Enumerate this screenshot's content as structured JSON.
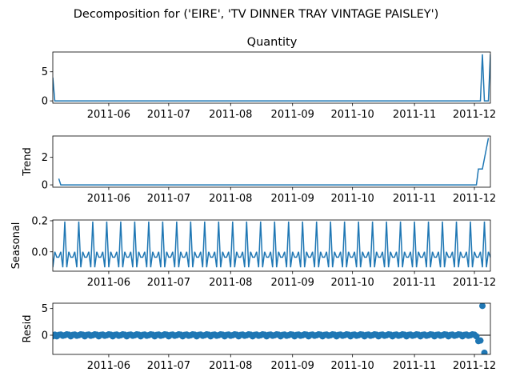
{
  "figure_title": "Decomposition for ('EIRE', 'TV DINNER TRAY VINTAGE PAISLEY')",
  "chart_data": [
    {
      "type": "line",
      "panel": "observed",
      "title": "Quantity",
      "xlabel": "",
      "ylabel": "",
      "x_range": [
        "2011-05-04",
        "2011-12-09"
      ],
      "ylim": [
        -0.4,
        8.4
      ],
      "yticks": [
        0,
        5
      ],
      "xticks": [
        "2011-06",
        "2011-07",
        "2011-08",
        "2011-09",
        "2011-10",
        "2011-11",
        "2011-12"
      ],
      "color": "#1f77b4",
      "points": [
        {
          "x": "2011-05-04",
          "y": 4
        },
        {
          "x": "2011-05-05",
          "y": 0
        },
        {
          "x": "2011-12-04",
          "y": 0
        },
        {
          "x": "2011-12-05",
          "y": 8
        },
        {
          "x": "2011-12-06",
          "y": 0
        },
        {
          "x": "2011-12-08",
          "y": 0
        },
        {
          "x": "2011-12-09",
          "y": 8
        }
      ]
    },
    {
      "type": "line",
      "panel": "trend",
      "title": "",
      "ylabel": "Trend",
      "x_range": [
        "2011-05-04",
        "2011-12-09"
      ],
      "ylim": [
        -0.17,
        3.55
      ],
      "yticks": [
        0,
        2
      ],
      "xticks": [
        "2011-06",
        "2011-07",
        "2011-08",
        "2011-09",
        "2011-10",
        "2011-11",
        "2011-12"
      ],
      "color": "#1f77b4",
      "points": [
        {
          "x": "2011-05-07",
          "y": 0.45
        },
        {
          "x": "2011-05-08",
          "y": 0.0
        },
        {
          "x": "2011-12-02",
          "y": 0.0
        },
        {
          "x": "2011-12-03",
          "y": 1.15
        },
        {
          "x": "2011-12-05",
          "y": 1.15
        },
        {
          "x": "2011-12-08",
          "y": 3.4
        }
      ]
    },
    {
      "type": "line",
      "panel": "seasonal",
      "title": "",
      "ylabel": "Seasonal",
      "x_range": [
        "2011-05-04",
        "2011-12-09"
      ],
      "ylim": [
        -0.125,
        0.205
      ],
      "yticks": [
        0.2,
        0.0
      ],
      "ytick_labels": [
        "0.2",
        "0.0"
      ],
      "xticks": [
        "2011-06",
        "2011-07",
        "2011-08",
        "2011-09",
        "2011-10",
        "2011-11",
        "2011-12"
      ],
      "color": "#1f77b4",
      "period_days": 7,
      "weekly_pattern": [
        0.195,
        -0.1,
        0.0,
        -0.035,
        -0.035,
        0.0,
        -0.1
      ],
      "pattern_start": "2011-05-03"
    },
    {
      "type": "scatter",
      "panel": "resid",
      "title": "",
      "ylabel": "Resid",
      "x_range": [
        "2011-05-04",
        "2011-12-09"
      ],
      "ylim": [
        -3.6,
        6.0
      ],
      "yticks": [
        5,
        0
      ],
      "xticks": [
        "2011-06",
        "2011-07",
        "2011-08",
        "2011-09",
        "2011-10",
        "2011-11",
        "2011-12"
      ],
      "color": "#1f77b4",
      "baseline": 0,
      "bulk_range": [
        "2011-05-04",
        "2011-12-02"
      ],
      "bulk_pattern": [
        0.1,
        -0.2,
        0.05,
        0.12,
        -0.1,
        0.0,
        0.15
      ],
      "points": [
        {
          "x": "2011-05-04",
          "y": -0.2
        },
        {
          "x": "2011-12-03",
          "y": -1.1
        },
        {
          "x": "2011-12-04",
          "y": -1.0
        },
        {
          "x": "2011-12-05",
          "y": 5.5
        },
        {
          "x": "2011-12-06",
          "y": -3.3
        }
      ]
    }
  ]
}
